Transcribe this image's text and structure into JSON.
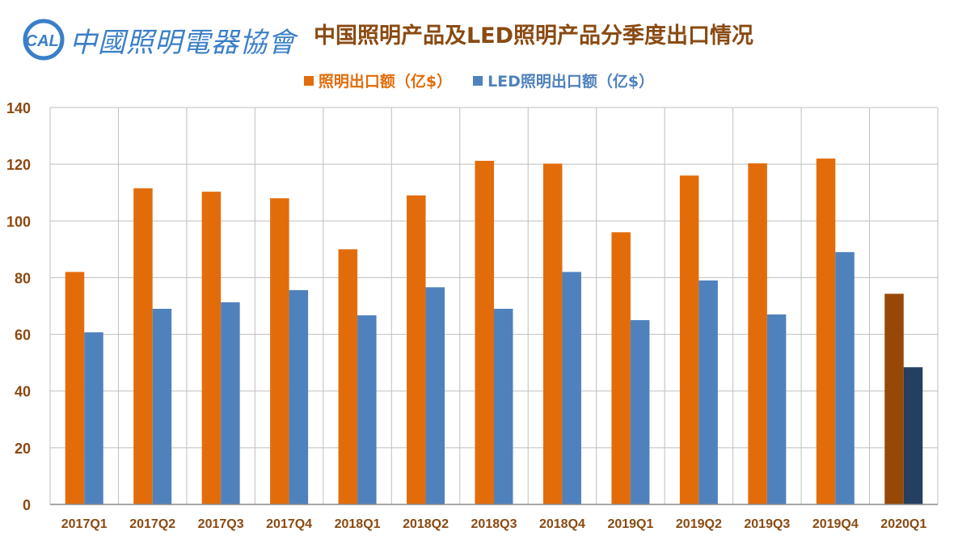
{
  "header": {
    "logo_text": "中國照明電器協會",
    "logo_badge": "CALI",
    "title": "中国照明产品及LED照明产品分季度出口情况"
  },
  "colors": {
    "lighting": "#e36c0a",
    "led": "#4f81bd",
    "lighting_highlight": "#974806",
    "led_highlight": "#243f60",
    "title": "#8a4a12",
    "axis_text": "#8a4a12"
  },
  "chart_data": {
    "type": "bar",
    "title": "中国照明产品及LED照明产品分季度出口情况",
    "xlabel": "",
    "ylabel": "",
    "ylim": [
      0,
      140
    ],
    "yticks": [
      0,
      20,
      40,
      60,
      80,
      100,
      120,
      140
    ],
    "grid": true,
    "legend_position": "top-center",
    "categories": [
      "2017Q1",
      "2017Q2",
      "2017Q3",
      "2017Q4",
      "2018Q1",
      "2018Q2",
      "2018Q3",
      "2018Q4",
      "2019Q1",
      "2019Q2",
      "2019Q3",
      "2019Q4",
      "2020Q1"
    ],
    "series": [
      {
        "name": "照明出口额（亿$）",
        "values": [
          82,
          111.5,
          110.3,
          108,
          90,
          109,
          121.2,
          120.2,
          96,
          116,
          120.3,
          122,
          74.3
        ]
      },
      {
        "name": "LED照明出口额（亿$）",
        "values": [
          60.7,
          69,
          71.3,
          75.6,
          66.7,
          76.6,
          69,
          82,
          65,
          79,
          67,
          89,
          48.4
        ]
      }
    ],
    "highlighted_category": "2020Q1"
  }
}
